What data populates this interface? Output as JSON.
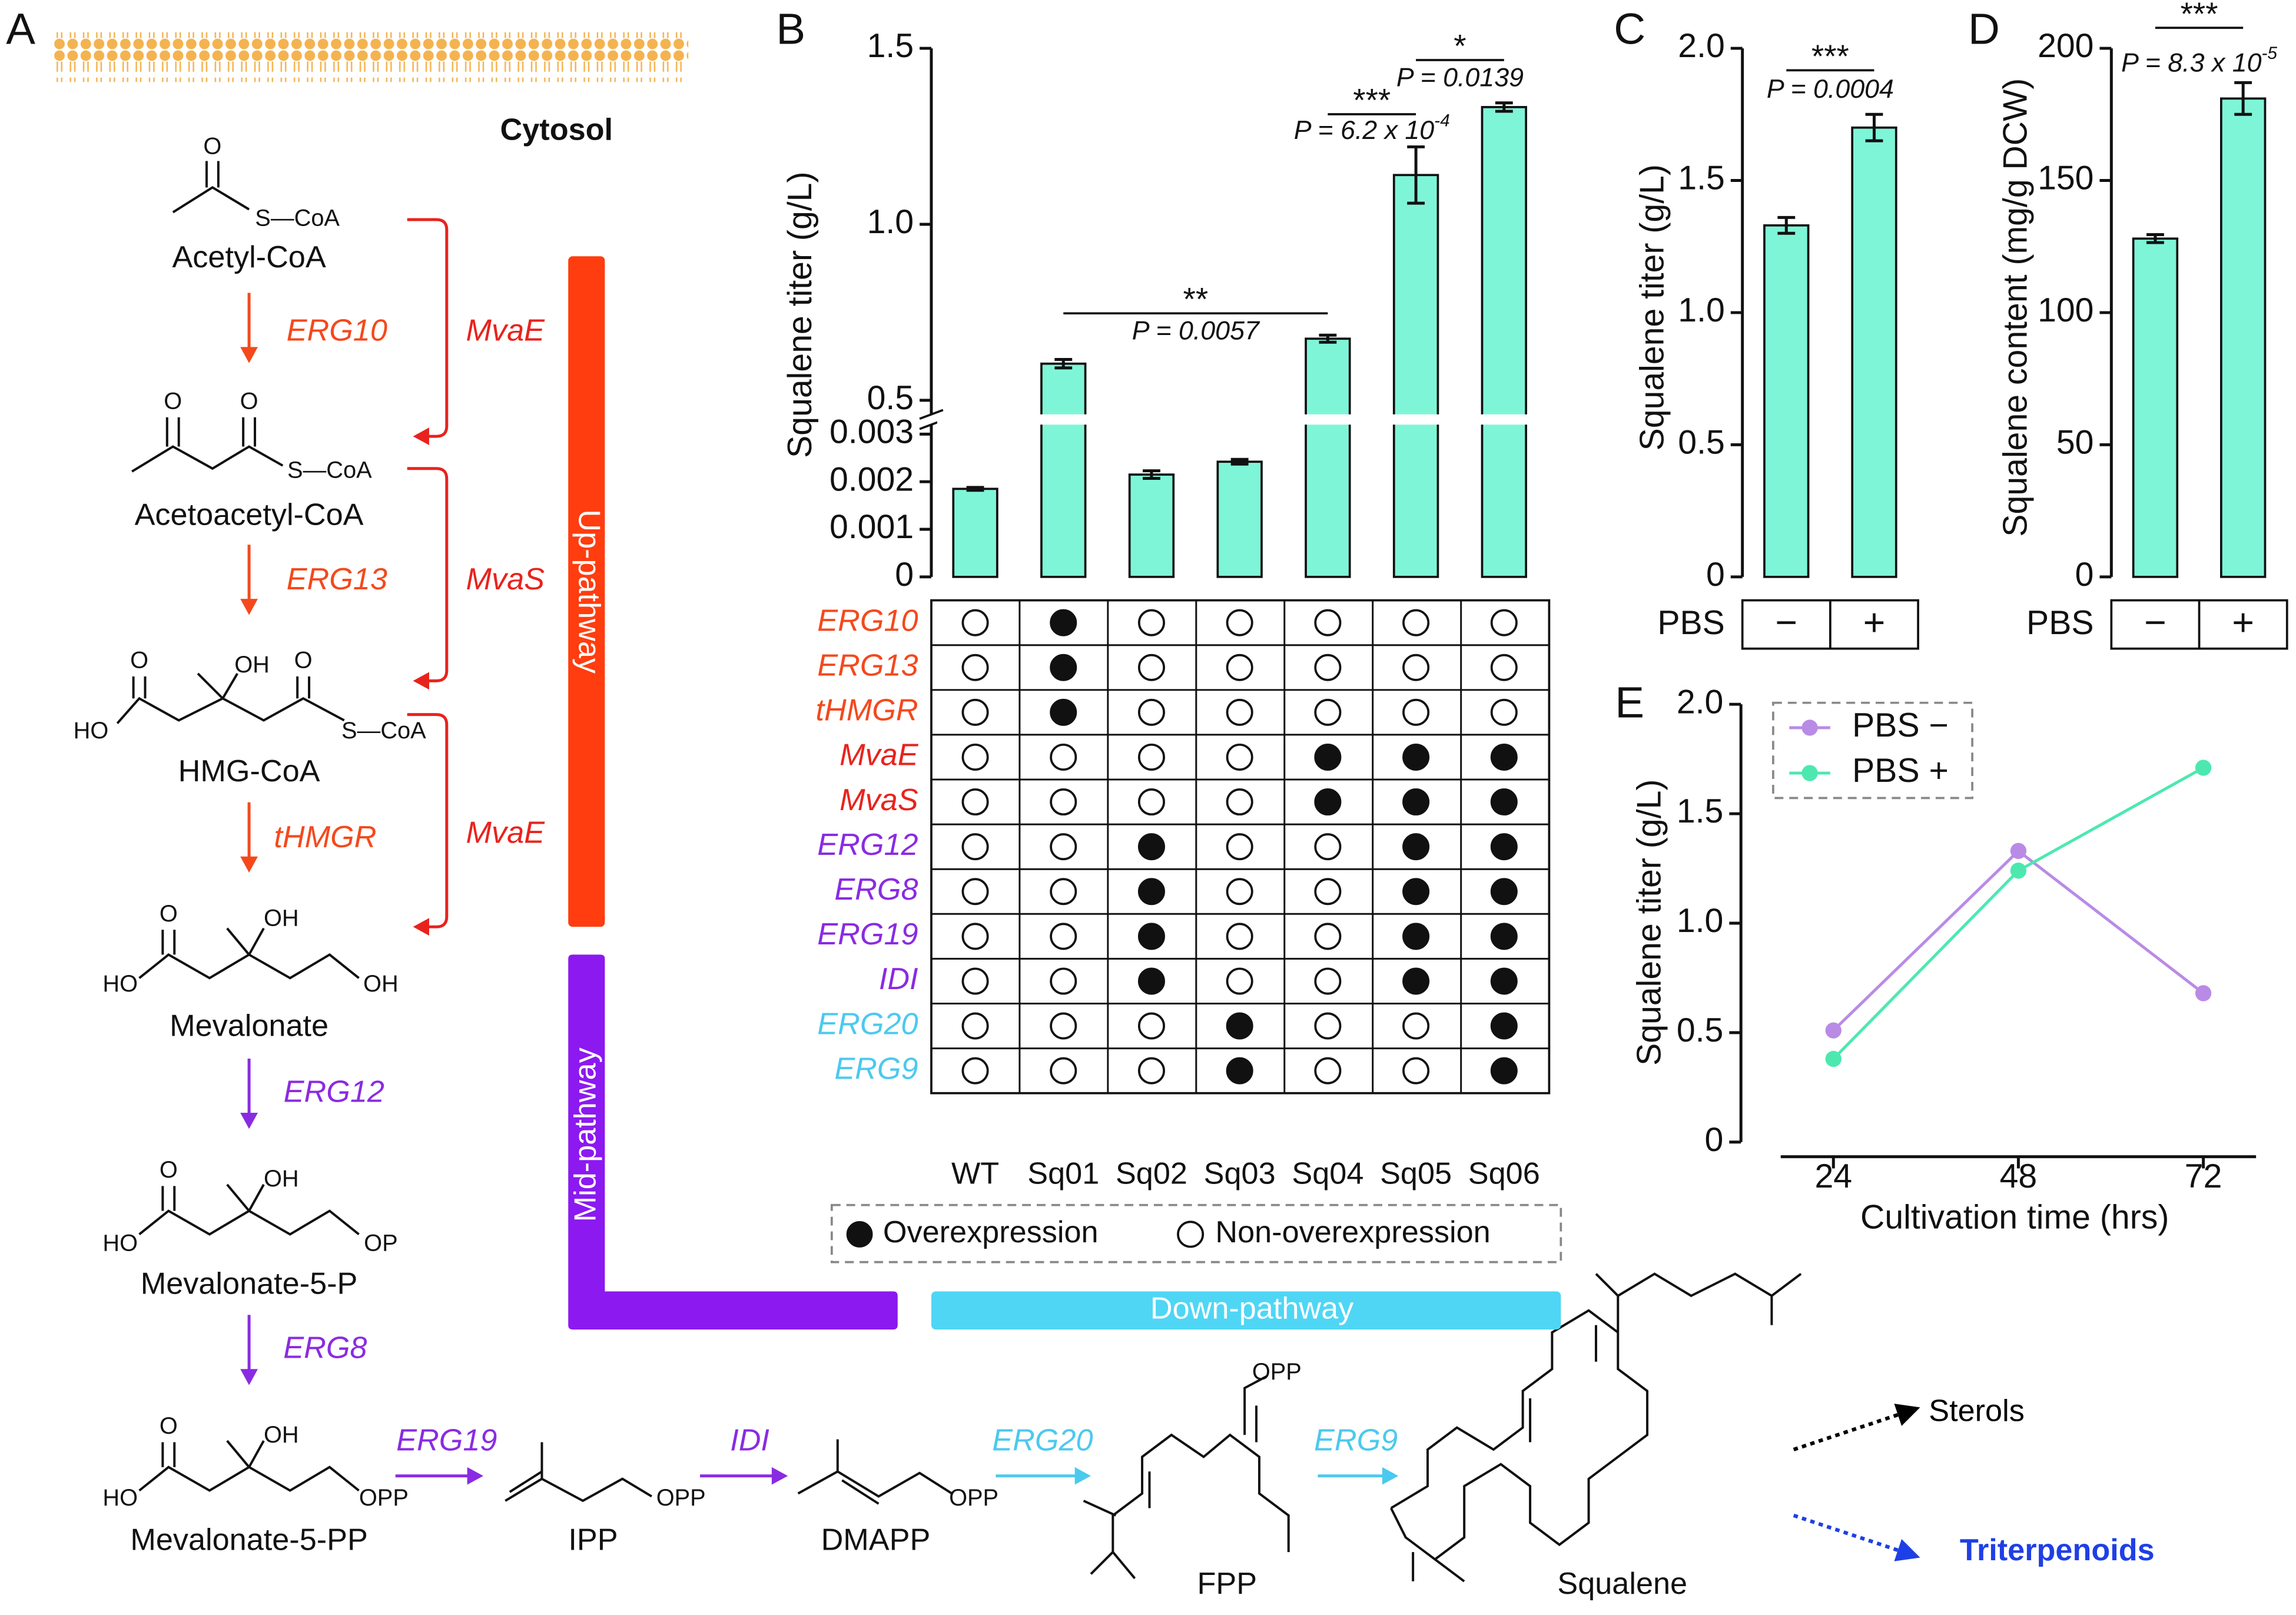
{
  "panel_labels": [
    "A",
    "B",
    "C",
    "D",
    "E"
  ],
  "pathway": {
    "compartment": "Cytosol",
    "metabolites": [
      {
        "name": "Acetyl-CoA",
        "atoms": [
          "O",
          "S—CoA"
        ]
      },
      {
        "name": "Acetoacetyl-CoA",
        "atoms": [
          "O",
          "O",
          "S—CoA"
        ]
      },
      {
        "name": "HMG-CoA",
        "atoms": [
          "O",
          "OH",
          "O",
          "HO",
          "S—CoA"
        ]
      },
      {
        "name": "Mevalonate",
        "atoms": [
          "O",
          "OH",
          "HO",
          "OH"
        ]
      },
      {
        "name": "Mevalonate-5-P",
        "atoms": [
          "O",
          "OH",
          "HO",
          "OP"
        ]
      },
      {
        "name": "Mevalonate-5-PP",
        "atoms": [
          "O",
          "OH",
          "HO",
          "OPP"
        ]
      },
      {
        "name": "IPP",
        "atoms": [
          "OPP"
        ]
      },
      {
        "name": "DMAPP",
        "atoms": [
          "OPP"
        ]
      },
      {
        "name": "FPP",
        "atoms": [
          "OPP"
        ]
      },
      {
        "name": "Squalene"
      }
    ],
    "enzymes": [
      {
        "name": "ERG10",
        "color": "#f4491c"
      },
      {
        "name": "ERG13",
        "color": "#f4491c"
      },
      {
        "name": "tHMGR",
        "color": "#f4491c"
      },
      {
        "name": "ERG12",
        "color": "#8a2be2"
      },
      {
        "name": "ERG8",
        "color": "#8a2be2"
      },
      {
        "name": "ERG19",
        "color": "#8a2be2"
      },
      {
        "name": "IDI",
        "color": "#8a2be2"
      },
      {
        "name": "ERG20",
        "color": "#4cc9ef"
      },
      {
        "name": "ERG9",
        "color": "#4cc9ef"
      }
    ],
    "bacterial_enzymes": [
      {
        "name": "MvaE",
        "color": "#e8231d"
      },
      {
        "name": "MvaS",
        "color": "#e8231d"
      },
      {
        "name": "MvaE",
        "color": "#e8231d"
      }
    ],
    "modules": [
      {
        "name": "Up-pathway",
        "color": "#ff3d0f"
      },
      {
        "name": "Mid-pathway",
        "color": "#8b19f0"
      },
      {
        "name": "Down-pathway",
        "color": "#4fd6f5"
      }
    ],
    "products": [
      {
        "name": "Sterols",
        "color": "#000000"
      },
      {
        "name": "Triterpenoids",
        "color": "#1f3fe6"
      }
    ]
  },
  "chart_data": [
    {
      "type": "bar",
      "ylabel": "Squalene titer (g/L)",
      "categories": [
        "WT",
        "Sq01",
        "Sq02",
        "Sq03",
        "Sq04",
        "Sq05",
        "Sq06"
      ],
      "values": [
        0.00185,
        0.604,
        0.00215,
        0.00242,
        0.675,
        1.14,
        1.333
      ],
      "errors": [
        3e-05,
        0.012,
        8e-05,
        5e-05,
        0.01,
        0.08,
        0.012
      ],
      "color": "#7ff5d8",
      "y_segments": [
        {
          "ylim": [
            0,
            0.0032
          ],
          "yticks": [
            0,
            0.001,
            0.002,
            0.003
          ]
        },
        {
          "ylim": [
            0.46,
            1.5
          ],
          "yticks": [
            0.5,
            {
              "value": 1,
              "label": "1.0"
            },
            1.5
          ]
        }
      ],
      "annotations": [
        {
          "stars": "**",
          "text": "P = 0.0057",
          "between": [
            "Sq01",
            "Sq04"
          ]
        },
        {
          "stars": "***",
          "text": "P = 6.2 x 10",
          "exponent": "-4",
          "between": [
            "Sq04",
            "Sq05"
          ]
        },
        {
          "stars": "*",
          "text": "P = 0.0139",
          "between": [
            "Sq05",
            "Sq06"
          ]
        }
      ],
      "genotype": {
        "legend": [
          "Overexpression",
          "Non-overexpression"
        ],
        "rows": [
          {
            "gene": "ERG10",
            "color": "#f4491c",
            "overexpressed": [
              false,
              true,
              false,
              false,
              false,
              false,
              false
            ]
          },
          {
            "gene": "ERG13",
            "color": "#f4491c",
            "overexpressed": [
              false,
              true,
              false,
              false,
              false,
              false,
              false
            ]
          },
          {
            "gene": "tHMGR",
            "color": "#f4491c",
            "overexpressed": [
              false,
              true,
              false,
              false,
              false,
              false,
              false
            ]
          },
          {
            "gene": "MvaE",
            "color": "#e8231d",
            "overexpressed": [
              false,
              false,
              false,
              false,
              true,
              true,
              true
            ]
          },
          {
            "gene": "MvaS",
            "color": "#e8231d",
            "overexpressed": [
              false,
              false,
              false,
              false,
              true,
              true,
              true
            ]
          },
          {
            "gene": "ERG12",
            "color": "#8a2be2",
            "overexpressed": [
              false,
              false,
              true,
              false,
              false,
              true,
              true
            ]
          },
          {
            "gene": "ERG8",
            "color": "#8a2be2",
            "overexpressed": [
              false,
              false,
              true,
              false,
              false,
              true,
              true
            ]
          },
          {
            "gene": "ERG19",
            "color": "#8a2be2",
            "overexpressed": [
              false,
              false,
              true,
              false,
              false,
              true,
              true
            ]
          },
          {
            "gene": "IDI",
            "color": "#8a2be2",
            "overexpressed": [
              false,
              false,
              true,
              false,
              false,
              true,
              true
            ]
          },
          {
            "gene": "ERG20",
            "color": "#4cc9ef",
            "overexpressed": [
              false,
              false,
              false,
              true,
              false,
              false,
              true
            ]
          },
          {
            "gene": "ERG9",
            "color": "#4cc9ef",
            "overexpressed": [
              false,
              false,
              false,
              true,
              false,
              false,
              true
            ]
          }
        ]
      }
    },
    {
      "type": "bar",
      "ylabel": "Squalene titer (g/L)",
      "xlabel": "PBS",
      "categories": [
        "−",
        "+"
      ],
      "values": [
        1.33,
        1.7
      ],
      "errors": [
        0.03,
        0.05
      ],
      "color": "#7ff5d8",
      "ylim": [
        0,
        2
      ],
      "yticks": [
        0,
        0.5,
        {
          "value": 1,
          "label": "1.0"
        },
        1.5,
        {
          "value": 2,
          "label": "2.0"
        }
      ],
      "annotations": [
        {
          "stars": "***",
          "text": "P = 0.0004",
          "between": [
            "−",
            "+"
          ]
        }
      ]
    },
    {
      "type": "bar",
      "ylabel": "Squalene content (mg/g DCW)",
      "xlabel": "PBS",
      "categories": [
        "−",
        "+"
      ],
      "values": [
        128,
        181
      ],
      "errors": [
        1.5,
        6
      ],
      "color": "#7ff5d8",
      "ylim": [
        0,
        200
      ],
      "yticks": [
        0,
        50,
        100,
        150,
        200
      ],
      "annotations": [
        {
          "stars": "***",
          "text": "P = 8.3 x 10",
          "exponent": "-5",
          "between": [
            "−",
            "+"
          ]
        }
      ]
    },
    {
      "type": "line",
      "ylabel": "Squalene titer (g/L)",
      "xlabel": "Cultivation time (hrs)",
      "x": [
        24,
        48,
        72
      ],
      "xlim": [
        12,
        84
      ],
      "xticks": [
        24,
        48,
        72
      ],
      "ylim": [
        0,
        2
      ],
      "yticks": [
        0,
        0.5,
        {
          "value": 1,
          "label": "1.0"
        },
        1.5,
        {
          "value": 2,
          "label": "2.0"
        }
      ],
      "series": [
        {
          "name": "PBS −",
          "color": "#b98be6",
          "values": [
            0.51,
            1.33,
            0.68
          ]
        },
        {
          "name": "PBS +",
          "color": "#4de8b0",
          "values": [
            0.38,
            1.24,
            1.71
          ]
        }
      ]
    }
  ]
}
